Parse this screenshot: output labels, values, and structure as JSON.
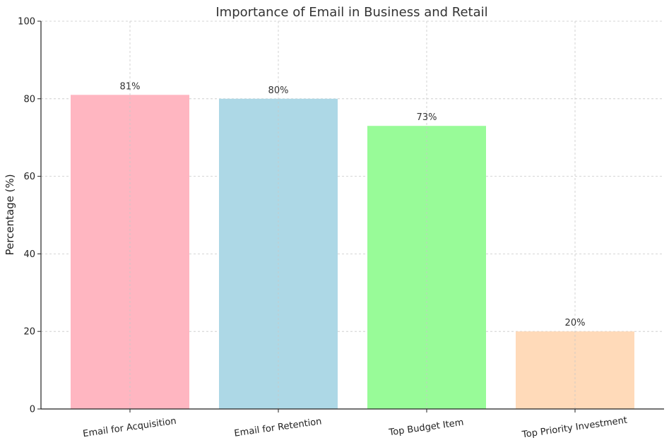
{
  "chart_data": {
    "type": "bar",
    "title": "Importance of Email in Business and Retail",
    "xlabel": "",
    "ylabel": "Percentage (%)",
    "ylim": [
      0,
      100
    ],
    "yticks": [
      0,
      20,
      40,
      60,
      80,
      100
    ],
    "categories": [
      "Email for Acquisition",
      "Email for Retention",
      "Top Budget Item",
      "Top Priority Investment"
    ],
    "values": [
      81,
      80,
      73,
      20
    ],
    "data_labels": [
      "81%",
      "80%",
      "73%",
      "20%"
    ],
    "colors": [
      "#ffb6c1",
      "#add8e6",
      "#98fb98",
      "#ffdab9"
    ],
    "grid": true,
    "legend": "none"
  }
}
